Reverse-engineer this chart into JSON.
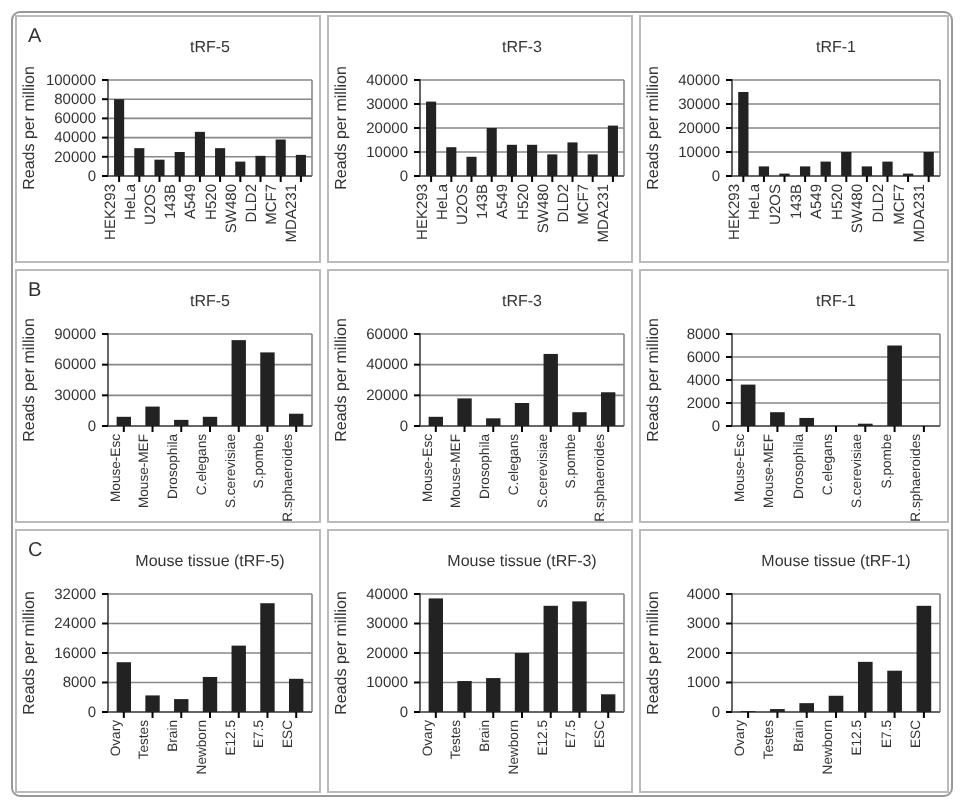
{
  "chart_data": [
    {
      "type": "bar",
      "title": "tRF-5",
      "annotations": [
        "A"
      ],
      "ylabel": "Reads per million",
      "categories": [
        "HEK293",
        "HeLa",
        "U2OS",
        "143B",
        "A549",
        "H520",
        "SW480",
        "DLD2",
        "MCF7",
        "MDA231"
      ],
      "values": [
        80000,
        29000,
        17000,
        25000,
        46000,
        29000,
        15000,
        21000,
        38000,
        22000
      ],
      "color": "#222222",
      "ylim": [
        0,
        100000
      ],
      "yticks": [
        0,
        20000,
        40000,
        60000,
        80000,
        100000
      ],
      "grid": "y"
    },
    {
      "type": "bar",
      "title": "tRF-3",
      "ylabel": "Reads per million",
      "categories": [
        "HEK293",
        "HeLa",
        "U2OS",
        "143B",
        "A549",
        "H520",
        "SW480",
        "DLD2",
        "MCF7",
        "MDA231"
      ],
      "values": [
        31000,
        12000,
        8000,
        20000,
        13000,
        13000,
        9000,
        14000,
        9000,
        21000
      ],
      "color": "#222222",
      "ylim": [
        0,
        40000
      ],
      "yticks": [
        0,
        10000,
        20000,
        30000,
        40000
      ],
      "grid": "y"
    },
    {
      "type": "bar",
      "title": "tRF-1",
      "ylabel": "Reads per million",
      "categories": [
        "HEK293",
        "HeLa",
        "U2OS",
        "143B",
        "A549",
        "H520",
        "SW480",
        "DLD2",
        "MCF7",
        "MDA231"
      ],
      "values": [
        35000,
        4000,
        1000,
        4000,
        6000,
        10000,
        4000,
        6000,
        1000,
        10000
      ],
      "color": "#222222",
      "ylim": [
        0,
        40000
      ],
      "yticks": [
        0,
        10000,
        20000,
        30000,
        40000
      ],
      "grid": "y"
    },
    {
      "type": "bar",
      "title": "tRF-5",
      "annotations": [
        "B"
      ],
      "ylabel": "Reads per million",
      "categories": [
        "Mouse-Esc",
        "Mouse-MEF",
        "Drosophila",
        "C.elegans",
        "S.cerevisiae",
        "S.pombe",
        "R.sphaeroides"
      ],
      "values": [
        9000,
        19000,
        6000,
        9000,
        84000,
        72000,
        12000
      ],
      "color": "#222222",
      "ylim": [
        0,
        90000
      ],
      "yticks": [
        0,
        30000,
        60000,
        90000
      ],
      "grid": "y"
    },
    {
      "type": "bar",
      "title": "tRF-3",
      "ylabel": "Reads per million",
      "categories": [
        "Mouse-Esc",
        "Mouse-MEF",
        "Drosophila",
        "C.elegans",
        "S.cerevisiae",
        "S.pombe",
        "R.sphaeroides"
      ],
      "values": [
        6000,
        18000,
        5000,
        15000,
        47000,
        9000,
        22000
      ],
      "color": "#222222",
      "ylim": [
        0,
        60000
      ],
      "yticks": [
        0,
        20000,
        40000,
        60000
      ],
      "grid": "y"
    },
    {
      "type": "bar",
      "title": "tRF-1",
      "ylabel": "Reads per million",
      "categories": [
        "Mouse-Esc",
        "Mouse-MEF",
        "Drosophila",
        "C.elegans",
        "S.cerevisiae",
        "S.pombe",
        "R.sphaeroides"
      ],
      "values": [
        3600,
        1200,
        700,
        0,
        200,
        7000,
        0
      ],
      "color": "#222222",
      "ylim": [
        0,
        8000
      ],
      "yticks": [
        0,
        2000,
        4000,
        6000,
        8000
      ],
      "grid": "y"
    },
    {
      "type": "bar",
      "title": "Mouse tissue (tRF-5)",
      "annotations": [
        "C"
      ],
      "ylabel": "Reads per million",
      "categories": [
        "Ovary",
        "Testes",
        "Brain",
        "Newborn",
        "E12.5",
        "E7.5",
        "ESC"
      ],
      "values": [
        13500,
        4500,
        3500,
        9500,
        18000,
        29500,
        9000
      ],
      "color": "#222222",
      "ylim": [
        0,
        32000
      ],
      "yticks": [
        0,
        8000,
        16000,
        24000,
        32000
      ],
      "grid": "y"
    },
    {
      "type": "bar",
      "title": "Mouse tissue (tRF-3)",
      "ylabel": "Reads per million",
      "categories": [
        "Ovary",
        "Testes",
        "Brain",
        "Newborn",
        "E12.5",
        "E7.5",
        "ESC"
      ],
      "values": [
        38500,
        10500,
        11500,
        20000,
        36000,
        37500,
        6000
      ],
      "color": "#222222",
      "ylim": [
        0,
        40000
      ],
      "yticks": [
        0,
        10000,
        20000,
        30000,
        40000
      ],
      "grid": "y"
    },
    {
      "type": "bar",
      "title": "Mouse tissue (tRF-1)",
      "ylabel": "Reads per million",
      "categories": [
        "Ovary",
        "Testes",
        "Brain",
        "Newborn",
        "E12.5",
        "E7.5",
        "ESC"
      ],
      "values": [
        30,
        100,
        300,
        550,
        1700,
        1400,
        3600
      ],
      "color": "#222222",
      "ylim": [
        0,
        4000
      ],
      "yticks": [
        0,
        1000,
        2000,
        3000,
        4000
      ],
      "grid": "y"
    }
  ]
}
